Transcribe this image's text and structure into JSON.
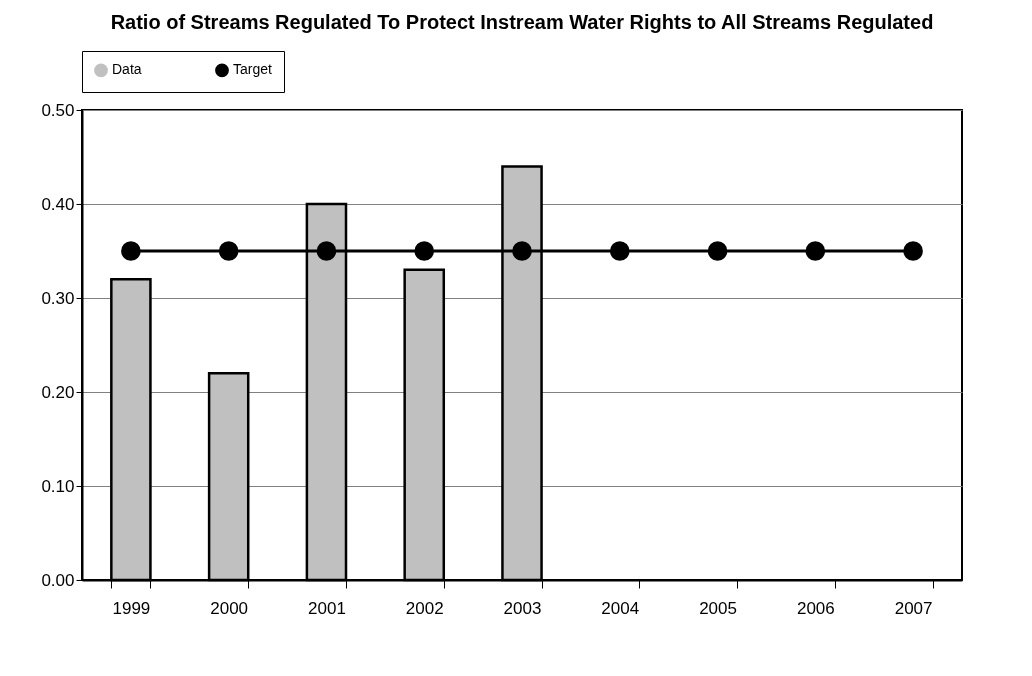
{
  "chart_data": {
    "type": "bar",
    "title": "Ratio of Streams Regulated To Protect Instream Water Rights to All Streams Regulated",
    "categories": [
      "1999",
      "2000",
      "2001",
      "2002",
      "2003",
      "2004",
      "2005",
      "2006",
      "2007"
    ],
    "series": [
      {
        "name": "Data",
        "color": "#c0c0c0",
        "values": [
          0.32,
          0.22,
          0.4,
          0.33,
          0.44,
          null,
          null,
          null,
          null
        ]
      },
      {
        "name": "Target",
        "type": "line",
        "color": "#000000",
        "values": [
          0.35,
          0.35,
          0.35,
          0.35,
          0.35,
          0.35,
          0.35,
          0.35,
          0.35
        ]
      }
    ],
    "ylim": [
      0,
      0.5
    ],
    "yticks": [
      {
        "value": 0,
        "label": "0.00"
      },
      {
        "value": 0.1,
        "label": "0.10"
      },
      {
        "value": 0.2,
        "label": "0.20"
      },
      {
        "value": 0.3,
        "label": "0.30"
      },
      {
        "value": 0.4,
        "label": "0.40"
      },
      {
        "value": 0.5,
        "label": "0.50"
      }
    ],
    "grid": "y",
    "legend": "top",
    "marker": "circle"
  }
}
